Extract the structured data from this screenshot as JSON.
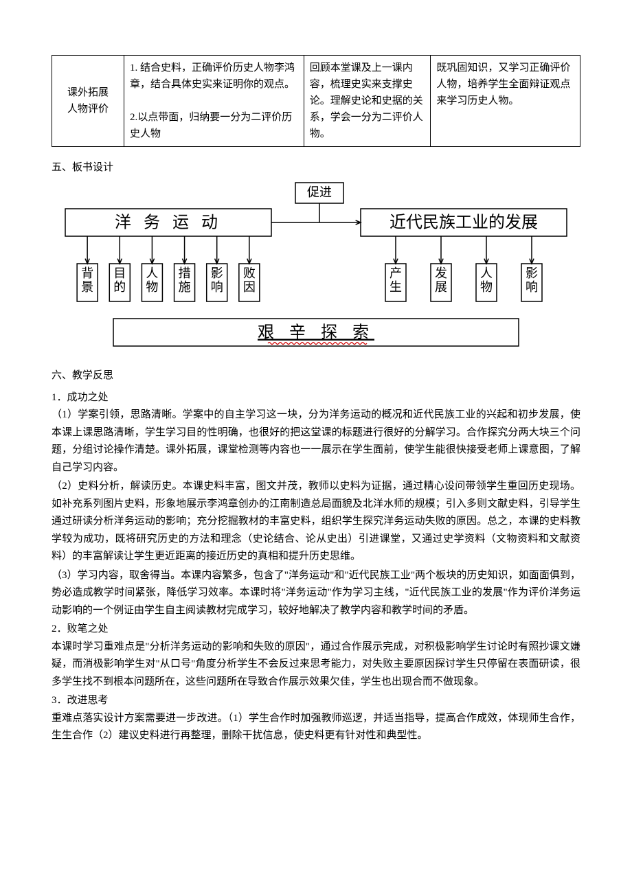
{
  "table": {
    "rowLabel": "课外拓展\n人物评价",
    "c1": "1. 结合史料，正确评价历史人物李鸿章，结合具体史实来证明你的观点。\n\n2.以点带面，归纳要一分为二评价历史人物",
    "c2": "回顾本堂课及上一课内容，梳理史实来支撑史论。理解史论和史据的关系，学会一分为二评价人物。",
    "c3": "既巩固知识，又学习正确评价人物，培养学生全面辩证观点来学习历史人物。"
  },
  "section5_title": "五、板书设计",
  "diagram": {
    "promote": "促进",
    "left_title": "洋 务 运 动",
    "right_title": "近代民族工业的发展",
    "left_items": [
      "背景",
      "目的",
      "人物",
      "措施",
      "影响",
      "败因"
    ],
    "right_items": [
      "产生",
      "发展",
      "人物",
      "影响"
    ],
    "bottom": "艰 辛 探 索",
    "box_stroke": "#000000",
    "box_fill": "#ffffff",
    "line_stroke": "#000000",
    "font_title": 24,
    "font_item": 18,
    "font_bottom": 24
  },
  "section6_title": "六、教学反思",
  "p1_title": "1．成功之处",
  "p1_1": "（1）学案引领，思路清晰。学案中的自主学习这一块，分为洋务运动的概况和近代民族工业的兴起和初步发展，使本课上课思路清晰，学生学习目的性明确，也很好的把这堂课的标题进行很好的分解学习。合作探究分两大块三个问题，分组讨论操作清楚。课外拓展，课堂检测等内容也一一展示在学生面前，使学生能很快接受老师上课意图，了解自己学习内容。",
  "p1_2": "（2）史料分析，解读历史。本课史料丰富，图文并茂，教师以史料为证据，通过精心设问带领学生重回历史现场。如补充系列图片史料，形象地展示李鸿章创办的江南制造总局面貌及北洋水师的规模；引入多则文献史料，引导学生通过研读分析洋务运动的影响；充分挖掘教材的丰富史料，组织学生探究洋务运动失败的原因。总之，本课的史料教学较为成功，既将研究历史的方法和理念（史论结合、论从史出）引进课堂，又通过史学资料（文物资料和文献资料）的丰富解读让学生更近距离的接近历史的真相和提升历史思维。",
  "p1_3": "（3）学习内容，取舍得当。本课内容繁多，包含了\"洋务运动\"和\"近代民族工业\"两个板块的历史知识，如面面俱到，势必造成教学时间紧张，降低学习效率。本课时将\"洋务运动\"作为学习主线，\"近代民族工业的发展\"作为评价洋务运动影响的一个例证由学生自主阅读教材完成学习，较好地解决了教学内容和教学时间的矛盾。",
  "p2_title": "2．败笔之处",
  "p2_1": "本课时学习重难点是\"分析洋务运动的影响和失败的原因\"，通过合作展示完成，对积极影响学生讨论时有照抄课文嫌疑，而消极影响学生对\"从口号\"角度分析学生不会反过来思考能力，对失败主要原因探讨学生只停留在表面研读，很多学生找不到根本问题所在，这些问题所在导致合作展示效果欠佳，学生也出现合而不做现象。",
  "p3_title": "3．改进思考",
  "p3_1": "重难点落实设计方案需要进一步改进。（1）学生合作时加强教师巡逻，并适当指导，提高合作成效，体现师生合作，生生合作（2）建议史料进行再整理，删除干扰信息，使史料更有针对性和典型性。"
}
